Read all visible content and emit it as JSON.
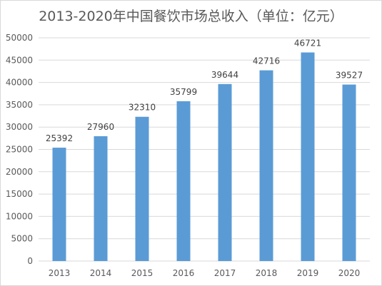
{
  "chart_data": {
    "type": "bar",
    "title": "2013-2020年中国餐饮市场总收入（单位：亿元）",
    "categories": [
      "2013",
      "2014",
      "2015",
      "2016",
      "2017",
      "2018",
      "2019",
      "2020"
    ],
    "values": [
      25392,
      27960,
      32310,
      35799,
      39644,
      42716,
      46721,
      39527
    ],
    "ylim": [
      0,
      50000
    ],
    "yticks": [
      0,
      5000,
      10000,
      15000,
      20000,
      25000,
      30000,
      35000,
      40000,
      45000,
      50000
    ],
    "xlabel": "",
    "ylabel": "",
    "grid": true,
    "bar_color": "#5b9bd5",
    "grid_color": "#d9d9d9"
  }
}
